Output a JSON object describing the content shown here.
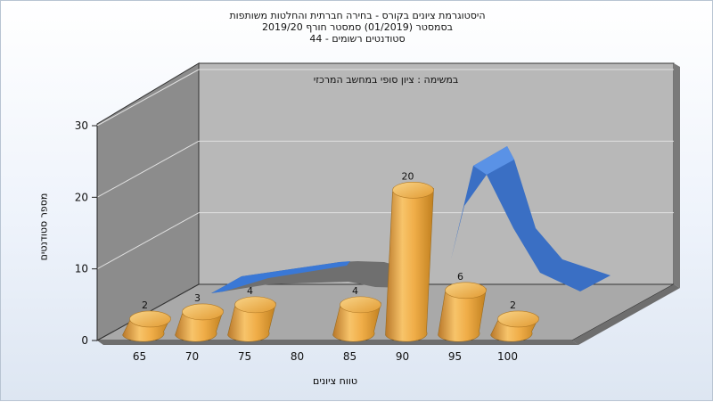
{
  "titles": {
    "line1": "היסטוגרמת ציונים בקורס - בחירה חברתית והחלטות משותפות",
    "line2": "בסמסטר  (01/2019)  סמסטר חורף 2019/20",
    "line3": "סטודנטים רשומים - 44"
  },
  "colors": {
    "bar": "#e8a640",
    "curve": "#3a78d6",
    "wall_back": "#b8b8b8",
    "wall_left": "#8a8a8a",
    "floor": "#a8a8a8"
  },
  "chart_data": {
    "type": "bar",
    "title": "היסטוגרמת ציונים בקורס - בחירה חברתית והחלטות משותפות",
    "subtitle": "במשימה : ציון סופי במחשב המרכזי",
    "xlabel": "טווח ציונים",
    "ylabel": "מספר סטודנטים",
    "categories": [
      "65",
      "70",
      "75",
      "80",
      "85",
      "90",
      "95",
      "100"
    ],
    "values": [
      2,
      3,
      4,
      null,
      4,
      20,
      6,
      2
    ],
    "ylim": [
      0,
      30
    ],
    "yticks": [
      0,
      10,
      20,
      30
    ],
    "grid": true,
    "curve": "normal-distribution overlay (blue ribbon)"
  }
}
